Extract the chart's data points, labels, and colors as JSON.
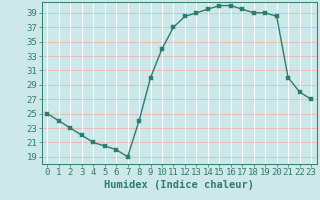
{
  "x": [
    0,
    1,
    2,
    3,
    4,
    5,
    6,
    7,
    8,
    9,
    10,
    11,
    12,
    13,
    14,
    15,
    16,
    17,
    18,
    19,
    20,
    21,
    22,
    23
  ],
  "y": [
    25,
    24,
    23,
    22,
    21,
    20.5,
    20,
    19,
    24,
    30,
    34,
    37,
    38.5,
    39,
    39.5,
    40,
    40,
    39.5,
    39,
    39,
    38.5,
    30,
    28,
    27
  ],
  "line_color": "#2e7d6e",
  "marker_color": "#2e7d6e",
  "bg_color": "#cce8e8",
  "grid_color_h": "#e8b8b8",
  "grid_color_v": "#ffffff",
  "xlabel": "Humidex (Indice chaleur)",
  "ylabel": "",
  "xlim": [
    -0.5,
    23.5
  ],
  "ylim": [
    18,
    40.5
  ],
  "yticks": [
    19,
    21,
    23,
    25,
    27,
    29,
    31,
    33,
    35,
    37,
    39
  ],
  "xticks": [
    0,
    1,
    2,
    3,
    4,
    5,
    6,
    7,
    8,
    9,
    10,
    11,
    12,
    13,
    14,
    15,
    16,
    17,
    18,
    19,
    20,
    21,
    22,
    23
  ],
  "tick_color": "#2e7d6e",
  "tick_fontsize": 6.5,
  "xlabel_fontsize": 7.5,
  "linewidth": 1.0,
  "markersize": 2.5
}
